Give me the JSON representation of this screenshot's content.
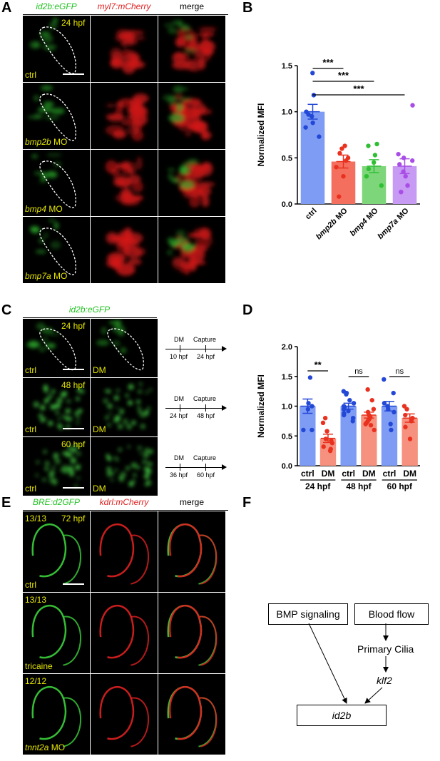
{
  "panels": {
    "A": {
      "letter": "A",
      "headers": [
        "id2b:eGFP",
        "myl7:mCherry",
        "merge"
      ],
      "time": "24 hpf",
      "rows": [
        {
          "gene": "",
          "suffix": "ctrl"
        },
        {
          "gene": "bmp2b",
          "suffix": " MO"
        },
        {
          "gene": "bmp4",
          "suffix": " MO"
        },
        {
          "gene": "bmp7a",
          "suffix": " MO"
        }
      ]
    },
    "B": {
      "letter": "B"
    },
    "C": {
      "letter": "C",
      "header": "id2b:eGFP",
      "rows": [
        {
          "time": "24 hpf",
          "left": "ctrl",
          "right": "DM",
          "t1": "10 hpf",
          "t2": "24 hpf"
        },
        {
          "time": "48 hpf",
          "left": "ctrl",
          "right": "DM",
          "t1": "24 hpf",
          "t2": "48 hpf"
        },
        {
          "time": "60 hpf",
          "left": "ctrl",
          "right": "DM",
          "t1": "36 hpf",
          "t2": "60 hpf"
        }
      ],
      "timeline_labels": {
        "start": "DM",
        "end": "Capture"
      }
    },
    "D": {
      "letter": "D"
    },
    "E": {
      "letter": "E",
      "headers": [
        "BRE:d2GFP",
        "kdrl:mCherry",
        "merge"
      ],
      "time": "72 hpf",
      "rows": [
        {
          "count": "13/13",
          "gene": "",
          "suffix": "ctrl"
        },
        {
          "count": "13/13",
          "gene": "",
          "suffix": "tricaine"
        },
        {
          "count": "12/12",
          "gene": "tnnt2a",
          "suffix": " MO"
        }
      ]
    },
    "F": {
      "letter": "F",
      "nodes": {
        "bmp": "BMP signaling",
        "flow": "Blood flow",
        "cilia": "Primary Cilia",
        "klf2": "klf2",
        "id2b": "id2b"
      }
    }
  },
  "chart_data": [
    {
      "type": "bar",
      "panel": "B",
      "ylabel": "Normalized MFI",
      "ylim": [
        0,
        1.5
      ],
      "yticks": [
        "0.0",
        "0.5",
        "1.0",
        "1.5"
      ],
      "categories": [
        {
          "gene": "",
          "suffix": "ctrl"
        },
        {
          "gene": "bmp2b",
          "suffix": " MO"
        },
        {
          "gene": "bmp4",
          "suffix": " MO"
        },
        {
          "gene": "bmp7a",
          "suffix": " MO"
        }
      ],
      "values": [
        1.0,
        0.46,
        0.41,
        0.41
      ],
      "errors": [
        0.08,
        0.07,
        0.07,
        0.08
      ],
      "colors": [
        "#7f9cf5",
        "#f46f5e",
        "#7ed67a",
        "#c79af3"
      ],
      "dotcolors": [
        "#2348d6",
        "#e8321f",
        "#2fbf33",
        "#a94de6"
      ],
      "points": [
        [
          1.42,
          1.18,
          1.0,
          0.97,
          0.95,
          0.88,
          0.83,
          0.73
        ],
        [
          0.63,
          0.6,
          0.55,
          0.5,
          0.47,
          0.4,
          0.3,
          0.08
        ],
        [
          0.65,
          0.63,
          0.53,
          0.45,
          0.38,
          0.3,
          0.2
        ],
        [
          1.07,
          0.54,
          0.5,
          0.47,
          0.43,
          0.35,
          0.3,
          0.2,
          0.13
        ]
      ],
      "sig": [
        {
          "from": 0,
          "to": 1,
          "label": "***"
        },
        {
          "from": 0,
          "to": 2,
          "label": "***"
        },
        {
          "from": 0,
          "to": 3,
          "label": "***"
        }
      ]
    },
    {
      "type": "bar",
      "panel": "D",
      "ylabel": "Normalized MFI",
      "ylim": [
        0,
        2.0
      ],
      "yticks": [
        "0.0",
        "0.5",
        "1.0",
        "1.5",
        "2.0"
      ],
      "categories": [
        "ctrl",
        "DM",
        "ctrl",
        "DM",
        "ctrl",
        "DM"
      ],
      "groups": [
        "24 hpf",
        "48 hpf",
        "60 hpf"
      ],
      "values": [
        1.0,
        0.46,
        1.0,
        0.85,
        1.0,
        0.8
      ],
      "errors": [
        0.12,
        0.07,
        0.05,
        0.05,
        0.08,
        0.07
      ],
      "colors": [
        "#7f9cf5",
        "#f7917f",
        "#7f9cf5",
        "#f7917f",
        "#7f9cf5",
        "#f7917f"
      ],
      "dotcolors": [
        "#2348d6",
        "#e8321f",
        "#2348d6",
        "#e8321f",
        "#2348d6",
        "#e8321f"
      ],
      "points": [
        [
          1.48,
          1.05,
          1.0,
          0.95,
          0.6,
          0.6
        ],
        [
          0.8,
          0.72,
          0.58,
          0.45,
          0.42,
          0.38,
          0.32,
          0.28,
          0.25
        ],
        [
          1.25,
          1.22,
          1.2,
          1.1,
          1.05,
          1.0,
          0.98,
          0.95,
          0.92,
          0.88,
          0.85,
          0.8,
          0.75
        ],
        [
          1.28,
          1.1,
          0.95,
          0.9,
          0.85,
          0.82,
          0.8,
          0.78,
          0.75,
          0.72,
          0.7,
          0.68,
          0.6
        ],
        [
          1.45,
          1.22,
          1.05,
          1.0,
          0.95,
          0.9,
          0.7,
          0.6
        ],
        [
          1.0,
          0.95,
          0.85,
          0.8,
          0.75,
          0.65,
          0.45
        ]
      ],
      "sig": [
        {
          "from": 0,
          "to": 1,
          "label": "**"
        },
        {
          "from": 2,
          "to": 3,
          "label": "ns"
        },
        {
          "from": 4,
          "to": 5,
          "label": "ns"
        }
      ]
    }
  ]
}
